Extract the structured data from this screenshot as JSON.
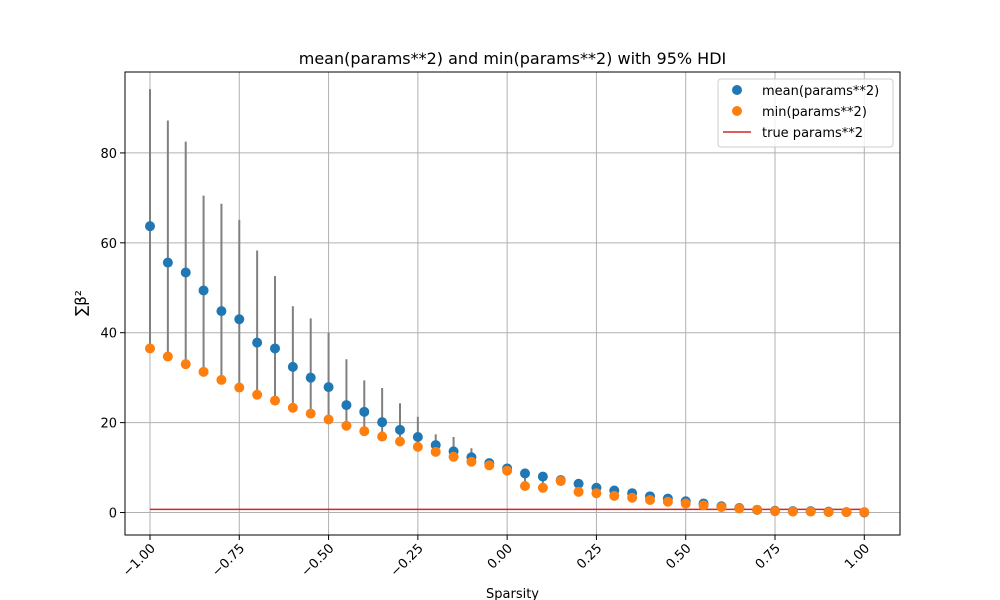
{
  "chart_data": {
    "type": "scatter",
    "title": "mean(params**2) and min(params**2) with 95% HDI",
    "xlabel": "Sparsity",
    "ylabel": "∑β²",
    "xlim": [
      -1.07,
      1.1
    ],
    "ylim": [
      -5,
      98
    ],
    "xticks": [
      -1.0,
      -0.75,
      -0.5,
      -0.25,
      0.0,
      0.25,
      0.5,
      0.75,
      1.0
    ],
    "xtick_labels": [
      "−1.00",
      "−0.75",
      "−0.50",
      "−0.25",
      "0.00",
      "0.25",
      "0.50",
      "0.75",
      "1.00"
    ],
    "yticks": [
      0,
      20,
      40,
      60,
      80
    ],
    "ytick_labels": [
      "0",
      "20",
      "40",
      "60",
      "80"
    ],
    "grid": true,
    "legend_position": "top-right",
    "x": [
      -1.0,
      -0.95,
      -0.9,
      -0.85,
      -0.8,
      -0.75,
      -0.7,
      -0.65,
      -0.6,
      -0.55,
      -0.5,
      -0.45,
      -0.4,
      -0.35,
      -0.3,
      -0.25,
      -0.2,
      -0.15,
      -0.1,
      -0.05,
      0.0,
      0.05,
      0.1,
      0.15,
      0.2,
      0.25,
      0.3,
      0.35,
      0.4,
      0.45,
      0.5,
      0.55,
      0.6,
      0.65,
      0.7,
      0.75,
      0.8,
      0.85,
      0.9,
      0.95,
      1.0
    ],
    "series": [
      {
        "name": "mean(params**2)",
        "color": "#1f77b4",
        "values": [
          63.7,
          55.6,
          53.4,
          49.4,
          44.8,
          43.0,
          37.8,
          36.5,
          32.4,
          30.0,
          27.9,
          23.9,
          22.4,
          20.1,
          18.4,
          16.8,
          15.0,
          13.6,
          12.3,
          11.0,
          9.8,
          8.7,
          8.0,
          7.2,
          6.4,
          5.5,
          4.9,
          4.3,
          3.6,
          3.1,
          2.5,
          2.0,
          1.4,
          1.0,
          0.6,
          0.4,
          0.3,
          0.3,
          0.2,
          0.1,
          0.0
        ]
      },
      {
        "name": "min(params**2)",
        "color": "#ff7f0e",
        "values": [
          36.5,
          34.7,
          33.0,
          31.3,
          29.5,
          27.8,
          26.2,
          24.9,
          23.3,
          22.0,
          20.7,
          19.3,
          18.1,
          16.9,
          15.8,
          14.6,
          13.5,
          12.4,
          11.3,
          10.5,
          9.3,
          5.9,
          5.5,
          7.0,
          4.6,
          4.3,
          3.7,
          3.3,
          2.8,
          2.4,
          2.0,
          1.6,
          1.2,
          0.9,
          0.6,
          0.3,
          0.2,
          0.2,
          0.1,
          0.1,
          0.1
        ]
      }
    ],
    "hdi_95": {
      "color": "#808080",
      "lower": [
        36.5,
        34.7,
        33.0,
        31.3,
        29.5,
        27.8,
        26.2,
        24.9,
        23.3,
        22.0,
        20.7,
        19.3,
        18.1,
        16.9,
        15.8,
        14.6,
        13.5,
        12.4,
        11.3,
        10.5,
        9.3,
        5.9,
        5.5,
        7.0,
        4.6,
        4.3,
        3.7,
        3.3,
        2.8,
        2.4,
        2.0,
        1.6,
        1.2,
        0.9,
        0.6,
        0.3,
        0.2,
        0.2,
        0.1,
        0.1,
        0.1
      ],
      "upper": [
        94.2,
        87.2,
        82.5,
        70.5,
        68.7,
        65.1,
        58.3,
        52.6,
        45.9,
        43.2,
        40.0,
        34.1,
        29.4,
        27.7,
        24.3,
        21.3,
        17.4,
        16.8,
        14.3,
        12.0,
        10.6,
        9.5,
        8.6,
        7.7,
        6.9,
        5.8,
        5.2,
        4.6,
        3.9,
        3.3,
        2.7,
        2.2,
        1.6,
        1.2,
        0.8,
        0.5,
        0.4,
        0.4,
        0.3,
        0.2,
        0.1
      ]
    },
    "true_line": {
      "name": "true params**2",
      "color": "#d62728",
      "x": [
        -1.0,
        1.0
      ],
      "y": [
        0.7,
        0.7
      ]
    }
  }
}
